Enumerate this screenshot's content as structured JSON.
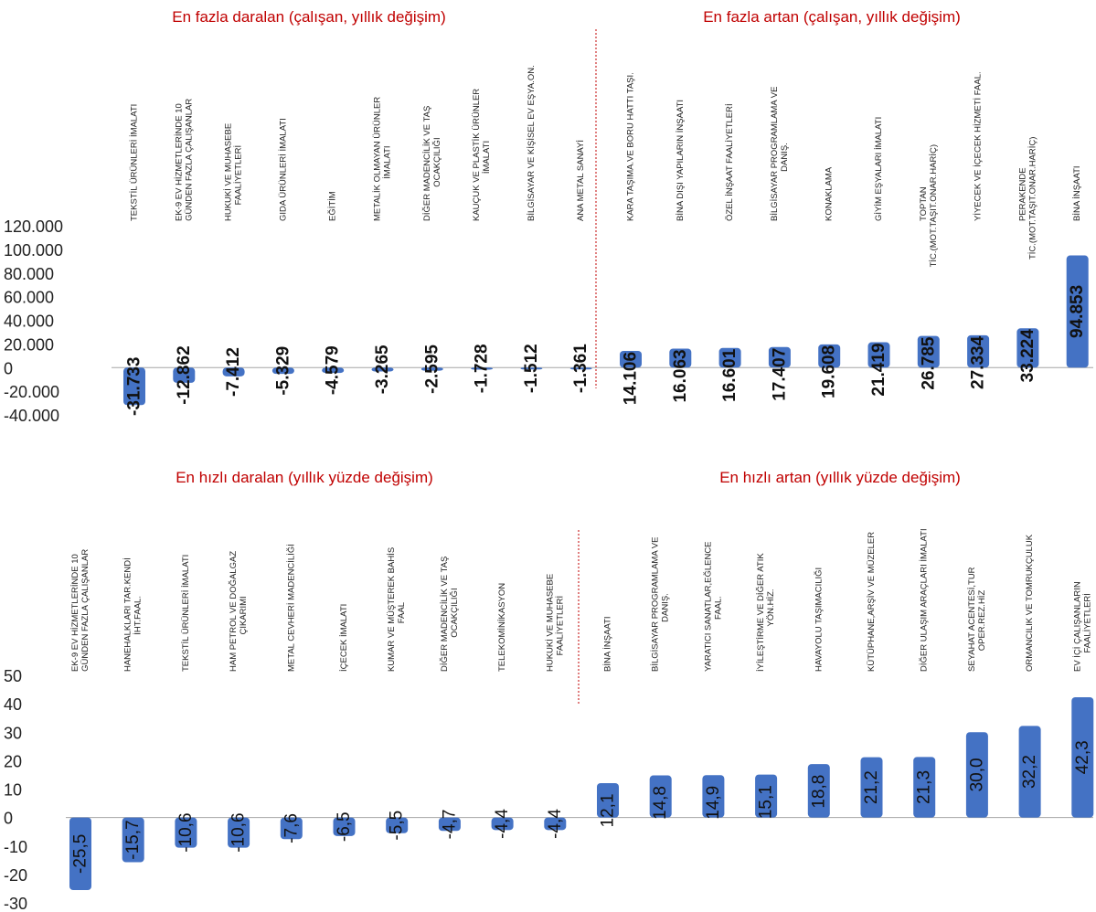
{
  "colors": {
    "bar": "#4472c4",
    "title": "#c00000",
    "divider": "#c00000",
    "axis": "#a6a6a6"
  },
  "chart_data": [
    {
      "type": "bar",
      "title_left": "En fazla daralan (çalışan, yıllık değişim)",
      "title_right": "En fazla artan (çalışan, yıllık değişim)",
      "ylim": [
        -40000,
        120000
      ],
      "yticks": [
        "120.000",
        "100.000",
        "80.000",
        "60.000",
        "40.000",
        "20.000",
        "0",
        "-20.000",
        "-40.000"
      ],
      "categories": [
        [
          "TEKSTİL ÜRÜNLERİ İMALATI"
        ],
        [
          "EK-9 EV HİZMETLERİNDE 10",
          "GÜNDEN FAZLA ÇALIŞANLAR"
        ],
        [
          "HUKUKİ VE MUHASEBE",
          "FAALİYETLERİ"
        ],
        [
          "GIDA ÜRÜNLERİ İMALATI"
        ],
        [
          "EĞİTİM"
        ],
        [
          "METALİK OLMAYAN ÜRÜNLER",
          "İMALATI"
        ],
        [
          "DİĞER MADENCİLİK VE TAŞ",
          "OCAKÇILIĞI"
        ],
        [
          "KAUÇUK VE PLASTİK ÜRÜNLER",
          "İMALATI"
        ],
        [
          "BİLGİSAYAR VE KİŞİSEL EV EŞYA.ON."
        ],
        [
          "ANA METAL SANAYİ"
        ],
        [
          "KARA TAŞIMA.VE BORU HATTI TAŞI."
        ],
        [
          "BİNA DIŞI YAPILARIN İNŞAATI"
        ],
        [
          "ÖZEL İNŞAAT FAALİYETLERİ"
        ],
        [
          "BİLGİSAYAR PROGRAMLAMA VE",
          "DANIŞ."
        ],
        [
          "KONAKLAMA"
        ],
        [
          "GİYİM EŞYALARI İMALATI"
        ],
        [
          "TOPTAN",
          "TİC.(MOT.TAŞIT.ONAR.HARİÇ)"
        ],
        [
          "YİYECEK VE İÇECEK HİZMETİ FAAL."
        ],
        [
          "PERAKENDE",
          "TİC.(MOT.TAŞIT.ONAR.HARİÇ)"
        ],
        [
          "BİNA İNŞAATI"
        ]
      ],
      "values": [
        -31733,
        -12862,
        -7412,
        -5329,
        -4579,
        -3265,
        -2595,
        -1728,
        -1512,
        -1361,
        14106,
        16063,
        16601,
        17407,
        19608,
        21419,
        26785,
        27334,
        33224,
        94853
      ],
      "labels": [
        "-31.733",
        "-12.862",
        "-7.412",
        "-5.329",
        "-4.579",
        "-3.265",
        "-2.595",
        "-1.728",
        "-1.512",
        "-1.361",
        "14.106",
        "16.063",
        "16.601",
        "17.407",
        "19.608",
        "21.419",
        "26.785",
        "27.334",
        "33.224",
        "94.853"
      ]
    },
    {
      "type": "bar",
      "title_left": "En hızlı daralan (yıllık yüzde değişim)",
      "title_right": "En hızlı artan (yıllık yüzde değişim)",
      "ylim": [
        -30,
        50
      ],
      "yticks": [
        "50",
        "40",
        "30",
        "20",
        "10",
        "0",
        "-10",
        "-20",
        "-30"
      ],
      "categories": [
        [
          "EK-9 EV HİZMETLERİNDE 10",
          "GÜNDEN FAZLA ÇALIŞANLAR"
        ],
        [
          "HANEHALKLARI TAR.KENDİ",
          "İHT.FAAL."
        ],
        [
          "TEKSTİL ÜRÜNLERİ İMALATI"
        ],
        [
          "HAM PETROL VE DOĞALGAZ",
          "ÇIKARIMI"
        ],
        [
          "METAL CEVHERİ MADENCİLİĞİ"
        ],
        [
          "İÇECEK İMALATI"
        ],
        [
          "KUMAR VE MÜŞTEREK BAHİS",
          "FAAL"
        ],
        [
          "DİĞER MADENCİLİK VE TAŞ",
          "OCAKÇILIĞI"
        ],
        [
          "TELEKOMİNİKASYON"
        ],
        [
          "HUKUKİ VE MUHASEBE",
          "FAALİYETLERİ"
        ],
        [
          "BİNA İNŞAATI"
        ],
        [
          "BİLGİSAYAR PROGRAMLAMA VE",
          "DANIŞ."
        ],
        [
          "YARATICI SANATLAR,EĞLENCE",
          "FAAL."
        ],
        [
          "İYİLEŞTİRME VE DİĞER ATIK",
          "YÖN.HİZ."
        ],
        [
          "HAVAYOLU TAŞIMACILIĞI"
        ],
        [
          "KÜTÜPHANE,ARŞİV VE MÜZELER"
        ],
        [
          "DİĞER ULAŞIM ARAÇLARI İMALATI"
        ],
        [
          "SEYAHAT ACENTESİ,TUR",
          "OPER.REZ.HİZ"
        ],
        [
          "ORMANCILIK VE TOMRUKÇULUK"
        ],
        [
          "EV İÇİ ÇALIŞANLARIN",
          "FAALİYETLERİ"
        ]
      ],
      "values": [
        -25.5,
        -15.7,
        -10.6,
        -10.6,
        -7.6,
        -6.5,
        -5.5,
        -4.7,
        -4.4,
        -4.4,
        12.1,
        14.8,
        14.9,
        15.1,
        18.8,
        21.2,
        21.3,
        30.0,
        32.2,
        42.3
      ],
      "labels": [
        "-25,5",
        "-15,7",
        "-10,6",
        "-10,6",
        "-7,6",
        "-6,5",
        "-5,5",
        "-4,7",
        "-4,4",
        "-4,4",
        "12,1",
        "14,8",
        "14,9",
        "15,1",
        "18,8",
        "21,2",
        "21,3",
        "30,0",
        "32,2",
        "42,3"
      ]
    }
  ]
}
